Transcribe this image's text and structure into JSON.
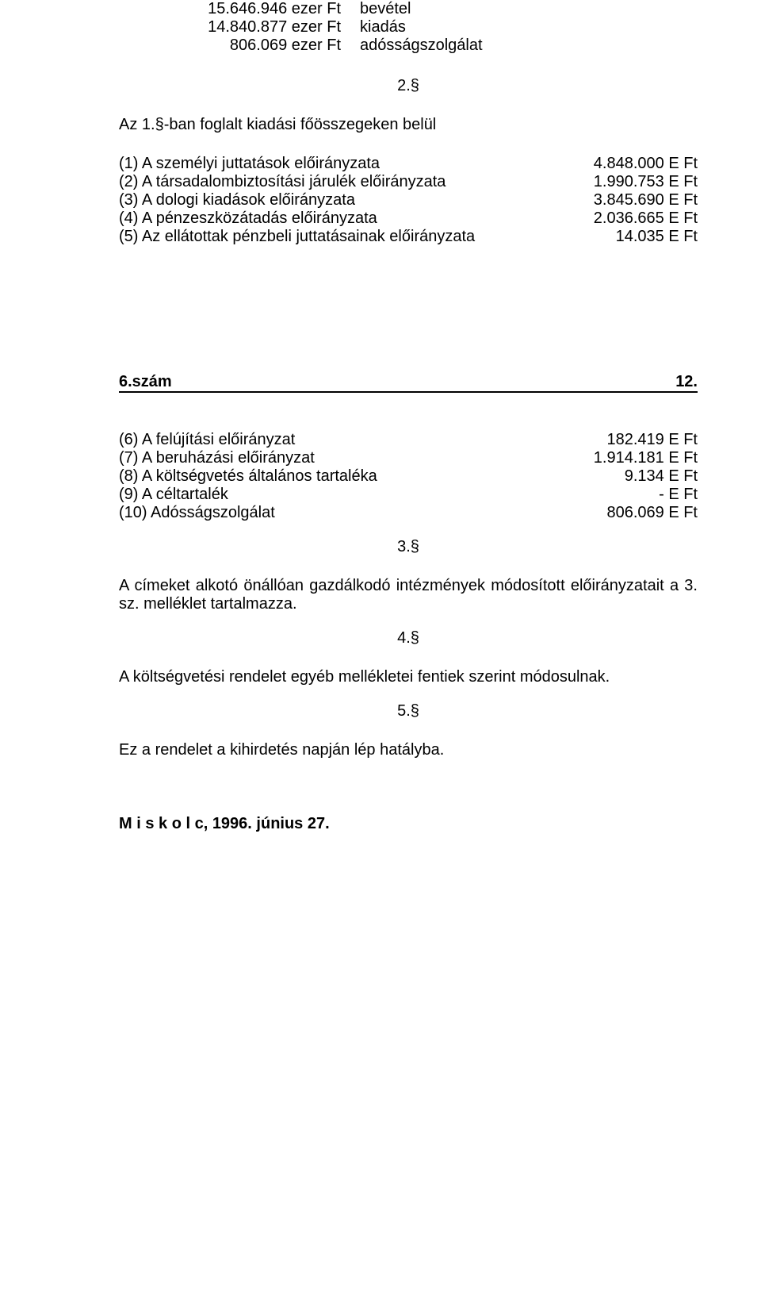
{
  "summary": [
    {
      "amount": "15.646.946 ezer Ft",
      "label": "bevétel"
    },
    {
      "amount": "14.840.877 ezer Ft",
      "label": "kiadás"
    },
    {
      "amount": "806.069 ezer Ft",
      "label": "adósságszolgálat"
    }
  ],
  "section2": {
    "num": "2.§",
    "intro": "Az 1.§-ban foglalt kiadási főösszegeken belül",
    "items": [
      {
        "text": "(1) A személyi juttatások előirányzata",
        "value": "4.848.000 E Ft"
      },
      {
        "text": "(2) A társadalombiztosítási járulék előirányzata",
        "value": "1.990.753 E Ft"
      },
      {
        "text": "(3) A dologi  kiadások előirányzata",
        "value": "3.845.690 E Ft"
      },
      {
        "text": "(4) A pénzeszközátadás előirányzata",
        "value": "2.036.665 E Ft"
      },
      {
        "text": "(5) Az ellátottak pénzbeli juttatásainak előirányzata",
        "value": "14.035 E Ft"
      }
    ]
  },
  "heading": {
    "left": "6.szám",
    "right": "12."
  },
  "items6to10": [
    {
      "text": "(6) A felújítási előirányzat",
      "value": "182.419 E Ft"
    },
    {
      "text": "(7) A beruházási előirányzat",
      "value": "1.914.181 E Ft"
    },
    {
      "text": "(8) A költségvetés általános tartaléka",
      "value": "9.134 E Ft"
    },
    {
      "text": "(9) A céltartalék",
      "value": "- E Ft"
    },
    {
      "text": "(10) Adósságszolgálat",
      "value": "806.069 E Ft"
    }
  ],
  "section3": {
    "num": "3.§",
    "text": "A címeket alkotó önállóan gazdálkodó intézmények módosított előirányzatait a 3. sz. melléklet tartalmazza."
  },
  "section4": {
    "num": "4.§",
    "text": "A költségvetési rendelet egyéb mellékletei fentiek szerint módosulnak."
  },
  "section5": {
    "num": "5.§",
    "text": "Ez a rendelet a kihirdetés napján lép hatályba."
  },
  "footer": "M i s k o l c, 1996. június 27."
}
